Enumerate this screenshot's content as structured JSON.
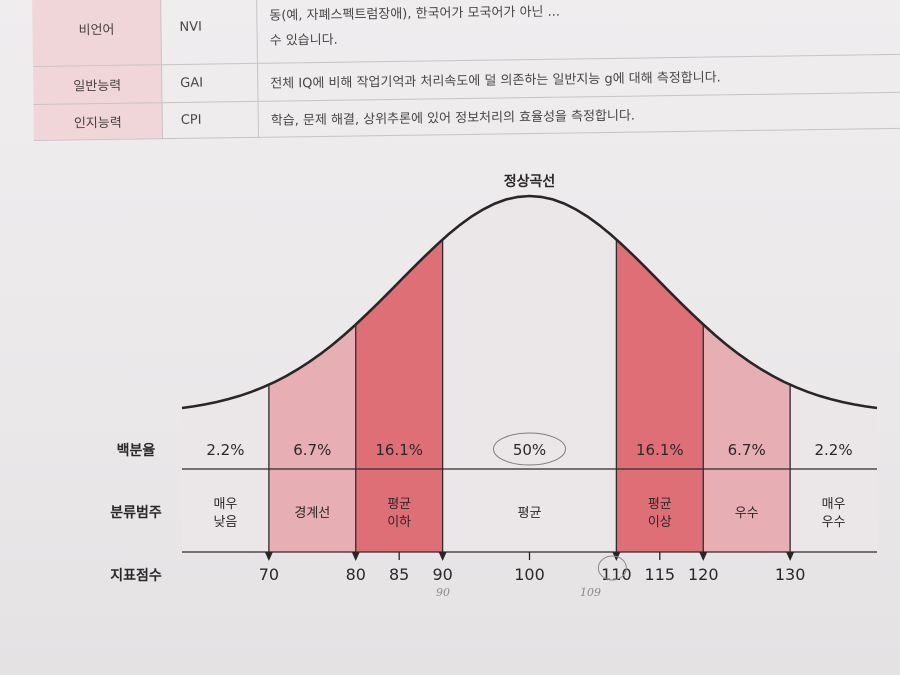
{
  "info_table": {
    "rows": [
      {
        "term": "비언어",
        "abbr": "NVI",
        "desc": "동(예, 자폐스펙트럼장애), 한국어가 모국어가 아닌 ...",
        "desc2": "수 있습니다."
      },
      {
        "term": "일반능력",
        "abbr": "GAI",
        "desc": "전체 IQ에 비해 작업기억과 처리속도에 덜 의존하는 일반지능 g에 대해 측정합니다."
      },
      {
        "term": "인지능력",
        "abbr": "CPI",
        "desc": "학습, 문제 해결, 상위추론에 있어 정보처리의 효율성을 측정합니다."
      }
    ]
  },
  "handwriting": {
    "note1": "90",
    "note2": "109"
  },
  "chart_data": {
    "type": "area",
    "title": "정상곡선",
    "row_labels": {
      "percent": "백분율",
      "category": "분류범주",
      "score": "지표점수"
    },
    "tick_labels": [
      "70",
      "80",
      "85",
      "90",
      "100",
      "110",
      "115",
      "120",
      "130"
    ],
    "tick_values": [
      70,
      80,
      85,
      90,
      100,
      110,
      115,
      120,
      130
    ],
    "xlim": [
      60,
      140
    ],
    "mean": 100,
    "sd": 15,
    "segments": [
      {
        "from": 60,
        "to": 70,
        "percent": "2.2%",
        "category": [
          "매우",
          "낮음"
        ],
        "shade": "#ebe7e8"
      },
      {
        "from": 70,
        "to": 80,
        "percent": "6.7%",
        "category": [
          "경계선"
        ],
        "shade": "#e7aeb3"
      },
      {
        "from": 80,
        "to": 90,
        "percent": "16.1%",
        "category": [
          "평균",
          "이하"
        ],
        "shade": "#df6f76"
      },
      {
        "from": 90,
        "to": 110,
        "percent": "50%",
        "category": [
          "평균"
        ],
        "shade": "#ebe7e8"
      },
      {
        "from": 110,
        "to": 120,
        "percent": "16.1%",
        "category": [
          "평균",
          "이상"
        ],
        "shade": "#df6f76"
      },
      {
        "from": 120,
        "to": 130,
        "percent": "6.7%",
        "category": [
          "우수"
        ],
        "shade": "#e7aeb3"
      },
      {
        "from": 130,
        "to": 140,
        "percent": "2.2%",
        "category": [
          "매우",
          "우수"
        ],
        "shade": "#ebe7e8"
      }
    ]
  }
}
